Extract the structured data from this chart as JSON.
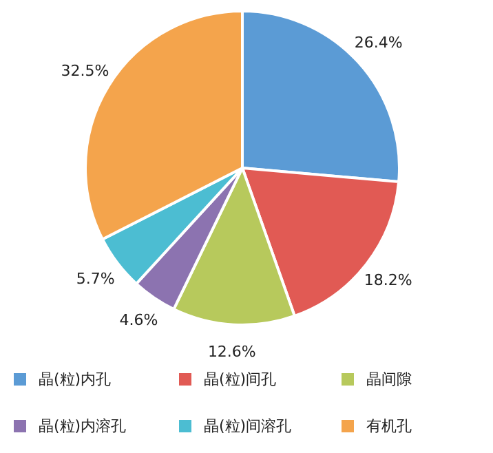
{
  "chart_data": {
    "type": "pie",
    "categories": [
      "晶(粒)内孔",
      "晶(粒)间孔",
      "晶间隙",
      "晶(粒)内溶孔",
      "晶(粒)间溶孔",
      "有机孔"
    ],
    "values": [
      26.4,
      18.2,
      12.6,
      4.6,
      5.7,
      32.5
    ],
    "colors": [
      "#5b9bd5",
      "#e15a54",
      "#b7c95c",
      "#8c73b0",
      "#4cbdd2",
      "#f4a44c"
    ],
    "value_labels": [
      "26.4%",
      "18.2%",
      "12.6%",
      "4.6%",
      "5.7%",
      "32.5%"
    ],
    "legend": "bottom"
  }
}
